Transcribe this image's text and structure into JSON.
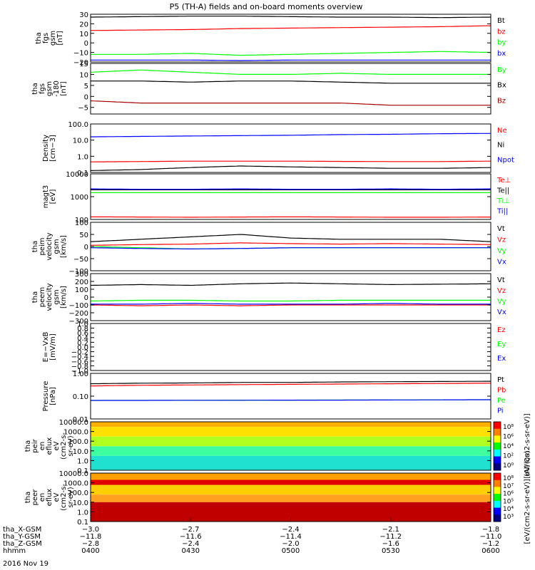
{
  "title": "P5 (TH-A) fields and on-board moments overview",
  "colors": {
    "black": "#000000",
    "red": "#ff0000",
    "dark_red": "#a00000",
    "green": "#00ff00",
    "blue": "#0000ff"
  },
  "chart_data": [
    {
      "type": "line",
      "ylabel": [
        "tha",
        "fgs",
        "gsm",
        "[nT]"
      ],
      "ylim": [
        -20,
        30
      ],
      "yticks": [
        {
          "v": 30,
          "l": "30"
        },
        {
          "v": 20,
          "l": "20"
        },
        {
          "v": 10,
          "l": "10"
        },
        {
          "v": 0,
          "l": "0"
        },
        {
          "v": -10,
          "l": "−10"
        },
        {
          "v": -20,
          "l": "−20"
        }
      ],
      "series": [
        {
          "name": "Bt",
          "color": "black",
          "values": [
            27,
            27.5,
            28,
            28,
            27.5,
            27,
            27,
            26.5,
            27
          ]
        },
        {
          "name": "bz",
          "color": "red",
          "values": [
            13,
            13.5,
            14,
            15,
            15.5,
            16,
            16.5,
            17,
            18
          ]
        },
        {
          "name": "by",
          "color": "green",
          "values": [
            -12,
            -12,
            -11,
            -13,
            -12,
            -11,
            -10,
            -9,
            -10
          ]
        },
        {
          "name": "bx",
          "color": "blue",
          "values": [
            -18,
            -18,
            -18,
            -18.5,
            -18,
            -18,
            -18,
            -18,
            -18
          ]
        }
      ]
    },
    {
      "type": "line",
      "ylabel": [
        "tha",
        "fgs",
        "gsm",
        "-180",
        "[nT]"
      ],
      "ylim": [
        -8,
        15
      ],
      "yticks": [
        {
          "v": 15,
          "l": "15"
        },
        {
          "v": 10,
          "l": "10"
        },
        {
          "v": 5,
          "l": "5"
        },
        {
          "v": 0,
          "l": "0"
        },
        {
          "v": -5,
          "l": "−5"
        }
      ],
      "series": [
        {
          "name": "By",
          "color": "green",
          "values": [
            11,
            12,
            11,
            10,
            10,
            10.5,
            10,
            10,
            10
          ]
        },
        {
          "name": "Bx",
          "color": "black",
          "values": [
            7,
            7,
            6.5,
            7,
            7,
            6.5,
            6,
            6,
            6
          ]
        },
        {
          "name": "Bz",
          "color": "dark_red",
          "values": [
            -2,
            -3,
            -3,
            -3,
            -3,
            -3,
            -4,
            -4,
            -4
          ]
        }
      ]
    },
    {
      "type": "line",
      "ylabel": [
        "Density",
        "[cm−3]"
      ],
      "ylim": [
        0.1,
        100
      ],
      "log": true,
      "yticks": [
        {
          "v": 100,
          "l": "100.0"
        },
        {
          "v": 10,
          "l": "10.0"
        },
        {
          "v": 1,
          "l": "1.0"
        },
        {
          "v": 0.1,
          "l": "0.1"
        }
      ],
      "series": [
        {
          "name": "Ne",
          "color": "red",
          "values": [
            0.45,
            0.47,
            0.5,
            0.5,
            0.5,
            0.48,
            0.47,
            0.47,
            0.5
          ]
        },
        {
          "name": "Ni",
          "color": "black",
          "values": [
            0.13,
            0.15,
            0.2,
            0.25,
            0.22,
            0.2,
            0.18,
            0.18,
            0.2
          ]
        },
        {
          "name": "Npot",
          "color": "blue",
          "values": [
            16,
            17,
            18,
            19,
            20,
            22,
            23,
            25,
            26
          ]
        }
      ]
    },
    {
      "type": "line",
      "ylabel": [
        "magt3",
        "[eV]"
      ],
      "ylim": [
        100,
        10000
      ],
      "log": true,
      "yticks": [
        {
          "v": 10000,
          "l": "10000"
        },
        {
          "v": 1000,
          "l": "1000"
        },
        {
          "v": 100,
          "l": "100"
        }
      ],
      "series": [
        {
          "name": "Te⊥",
          "color": "red",
          "values": [
            130,
            128,
            125,
            128,
            130,
            128,
            125,
            125,
            128
          ]
        },
        {
          "name": "Te||",
          "color": "black",
          "values": [
            2000,
            2000,
            2000,
            2000,
            2000,
            2000,
            2000,
            2000,
            2000
          ]
        },
        {
          "name": "Ti⊥",
          "color": "green",
          "values": [
            1500,
            1500,
            1500,
            1500,
            1500,
            1500,
            1500,
            1500,
            1500
          ]
        },
        {
          "name": "Ti||",
          "color": "blue",
          "values": [
            2200,
            2100,
            2100,
            2200,
            2100,
            2100,
            2200,
            2100,
            2200
          ]
        }
      ]
    },
    {
      "type": "line",
      "ylabel": [
        "tha",
        "peim",
        "velocity",
        "gsm",
        "[km/s]"
      ],
      "ylim": [
        -100,
        100
      ],
      "yticks": [
        {
          "v": 100,
          "l": "100"
        },
        {
          "v": 50,
          "l": "50"
        },
        {
          "v": 0,
          "l": "0"
        },
        {
          "v": -50,
          "l": "−50"
        },
        {
          "v": -100,
          "l": "−100"
        }
      ],
      "series": [
        {
          "name": "Vt",
          "color": "black",
          "values": [
            20,
            30,
            40,
            50,
            35,
            30,
            30,
            30,
            20
          ]
        },
        {
          "name": "Vz",
          "color": "red",
          "values": [
            5,
            8,
            10,
            15,
            12,
            10,
            12,
            10,
            8
          ]
        },
        {
          "name": "Vy",
          "color": "green",
          "values": [
            0,
            -5,
            -10,
            -8,
            -5,
            -5,
            -5,
            -5,
            -5
          ]
        },
        {
          "name": "Vx",
          "color": "blue",
          "values": [
            -5,
            -8,
            -10,
            -8,
            -5,
            -5,
            -5,
            -5,
            -5
          ]
        }
      ]
    },
    {
      "type": "line",
      "ylabel": [
        "tha",
        "peem",
        "velocity",
        "gsm",
        "[km/s]"
      ],
      "ylim": [
        -300,
        300
      ],
      "yticks": [
        {
          "v": 300,
          "l": "300"
        },
        {
          "v": 200,
          "l": "200"
        },
        {
          "v": 100,
          "l": "100"
        },
        {
          "v": 0,
          "l": "0"
        },
        {
          "v": -100,
          "l": "−100"
        },
        {
          "v": -200,
          "l": "−200"
        },
        {
          "v": -300,
          "l": "−300"
        }
      ],
      "series": [
        {
          "name": "Vt",
          "color": "black",
          "values": [
            150,
            160,
            150,
            170,
            180,
            170,
            160,
            165,
            170
          ]
        },
        {
          "name": "Vz",
          "color": "red",
          "values": [
            -100,
            -110,
            -100,
            -110,
            -100,
            -100,
            -100,
            -100,
            -100
          ]
        },
        {
          "name": "Vy",
          "color": "green",
          "values": [
            -50,
            -40,
            -40,
            -50,
            -50,
            -40,
            -40,
            -40,
            -40
          ]
        },
        {
          "name": "Vx",
          "color": "blue",
          "values": [
            -90,
            -90,
            -80,
            -90,
            -90,
            -90,
            -80,
            -90,
            -90
          ]
        }
      ]
    },
    {
      "type": "line",
      "ylabel": [
        "E=−VxB",
        "[mV/m]"
      ],
      "ylim": [
        -1,
        1
      ],
      "yticks": [
        {
          "v": 1,
          "l": "1.0"
        },
        {
          "v": 0.8,
          "l": "0.8"
        },
        {
          "v": 0.6,
          "l": "0.6"
        },
        {
          "v": 0.4,
          "l": "0.4"
        },
        {
          "v": 0.2,
          "l": "0.2"
        },
        {
          "v": 0,
          "l": "0.0"
        },
        {
          "v": -0.2,
          "l": "−0.2"
        },
        {
          "v": -0.4,
          "l": "−0.4"
        },
        {
          "v": -0.6,
          "l": "−0.6"
        },
        {
          "v": -0.8,
          "l": "−0.8"
        },
        {
          "v": -1,
          "l": "−1.0"
        }
      ],
      "series": [
        {
          "name": "Ez",
          "color": "red",
          "values": []
        },
        {
          "name": "Ey",
          "color": "green",
          "values": []
        },
        {
          "name": "Ex",
          "color": "blue",
          "values": []
        }
      ]
    },
    {
      "type": "line",
      "ylabel": [
        "Pressure",
        "[nPa]"
      ],
      "ylim": [
        0.01,
        1
      ],
      "log": true,
      "yticks": [
        {
          "v": 1,
          "l": "1.00"
        },
        {
          "v": 0.1,
          "l": "0.10"
        },
        {
          "v": 0.01,
          "l": "0.01"
        }
      ],
      "series": [
        {
          "name": "Pt",
          "color": "black",
          "values": [
            0.35,
            0.37,
            0.38,
            0.4,
            0.4,
            0.42,
            0.43,
            0.44,
            0.45
          ]
        },
        {
          "name": "Pb",
          "color": "red",
          "values": [
            0.28,
            0.3,
            0.31,
            0.32,
            0.33,
            0.34,
            0.35,
            0.36,
            0.37
          ]
        },
        {
          "name": "Pe",
          "color": "green",
          "values": [
            0.065,
            0.066,
            0.066,
            0.067,
            0.067,
            0.068,
            0.068,
            0.069,
            0.07
          ]
        },
        {
          "name": "Pi",
          "color": "blue",
          "values": [
            0.065,
            0.065,
            0.066,
            0.066,
            0.067,
            0.067,
            0.068,
            0.069,
            0.07
          ]
        }
      ]
    },
    {
      "type": "heatmap",
      "ylabel": [
        "tha",
        "peir",
        "en",
        "eflux",
        "eV",
        "(cm2-s-",
        "sr-eV)"
      ],
      "ylim": [
        0.1,
        10000
      ],
      "log": true,
      "yticks": [
        {
          "v": 10000,
          "l": "10000.0"
        },
        {
          "v": 1000,
          "l": "1000.0"
        },
        {
          "v": 100,
          "l": "100.0"
        },
        {
          "v": 10,
          "l": "10.0"
        },
        {
          "v": 1,
          "l": "1.0"
        },
        {
          "v": 0.1,
          "l": "0.1"
        }
      ],
      "bands": [
        {
          "from": 10000,
          "to": 3000,
          "color": "#ffb000"
        },
        {
          "from": 3000,
          "to": 300,
          "color": "#ffe000"
        },
        {
          "from": 300,
          "to": 30,
          "color": "#b0ff20"
        },
        {
          "from": 30,
          "to": 3,
          "color": "#40ffa0"
        },
        {
          "from": 3,
          "to": 0.1,
          "color": "#20e0d0"
        }
      ],
      "colorbar": {
        "label": "[eV/(cm2-s-sr-eV)]",
        "ticks": [
          "10⁸",
          "10⁶",
          "10⁴",
          "10²",
          "10⁰"
        ]
      }
    },
    {
      "type": "heatmap",
      "ylabel": [
        "tha",
        "peer",
        "en",
        "eflux",
        "eV",
        "(cm2-s-",
        "sr-eV)"
      ],
      "ylim": [
        0.1,
        10000
      ],
      "log": true,
      "yticks": [
        {
          "v": 10000,
          "l": "10000.0"
        },
        {
          "v": 1000,
          "l": "1000.0"
        },
        {
          "v": 100,
          "l": "100.0"
        },
        {
          "v": 10,
          "l": "10.0"
        },
        {
          "v": 1,
          "l": "1.0"
        },
        {
          "v": 0.1,
          "l": "0.1"
        }
      ],
      "bands": [
        {
          "from": 10000,
          "to": 2000,
          "color": "#ffa000"
        },
        {
          "from": 2000,
          "to": 600,
          "color": "#e00000"
        },
        {
          "from": 600,
          "to": 60,
          "color": "#ffd000"
        },
        {
          "from": 60,
          "to": 10,
          "color": "#ffa020"
        },
        {
          "from": 10,
          "to": 0.1,
          "color": "#c00000"
        }
      ],
      "colorbar": {
        "label": "[eV/(cm2-s-sr-eV)] (All Qs)",
        "ticks": [
          "10⁸",
          "10⁷",
          "10⁶",
          "10⁵",
          "10⁴",
          "10³"
        ]
      }
    }
  ],
  "x_axis": {
    "rows": [
      {
        "label": "tha_X-GSM",
        "values": [
          "−3.0",
          "−2.7",
          "−2.4",
          "−2.1",
          "−1.8"
        ]
      },
      {
        "label": "tha_Y-GSM",
        "values": [
          "−11.8",
          "−11.6",
          "−11.4",
          "−11.2",
          "−11.0"
        ]
      },
      {
        "label": "tha_Z-GSM",
        "values": [
          "−2.8",
          "−2.4",
          "−2.0",
          "−1.6",
          "−1.2"
        ]
      },
      {
        "label": "hhmm",
        "values": [
          "0400",
          "0430",
          "0500",
          "0530",
          "0600"
        ]
      }
    ],
    "date": "2016 Nov 19"
  }
}
